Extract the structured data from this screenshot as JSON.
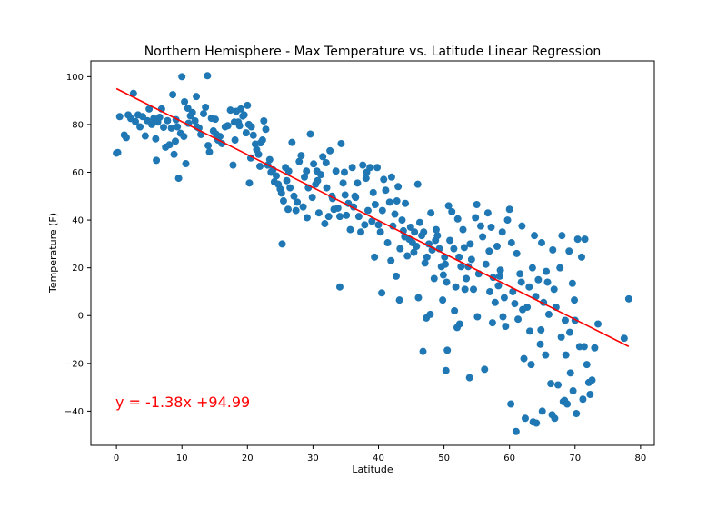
{
  "chart_data": {
    "type": "scatter",
    "title": "Northern Hemisphere - Max Temperature vs. Latitude Linear Regression",
    "xlabel": "Latitude",
    "ylabel": "Temperature (F)",
    "xlim": [
      -3.9,
      82.1
    ],
    "ylim": [
      -54.3,
      106.6
    ],
    "xticks": [
      0,
      10,
      20,
      30,
      40,
      50,
      60,
      70,
      80
    ],
    "xtick_labels": [
      "0",
      "10",
      "20",
      "30",
      "40",
      "50",
      "60",
      "70",
      "80"
    ],
    "yticks": [
      -40,
      -20,
      0,
      20,
      40,
      60,
      80,
      100
    ],
    "ytick_labels": [
      "−40",
      "−20",
      "0",
      "20",
      "40",
      "60",
      "80",
      "100"
    ],
    "grid": false,
    "annotation": "y = -1.38x +94.99",
    "colors": {
      "points": "#1f77b4",
      "regression": "#ff0000",
      "annotation": "#ff0000"
    },
    "regression": {
      "slope": -1.38,
      "intercept": 94.99,
      "x_range": [
        0,
        78.2
      ]
    },
    "points": [
      [
        0.0,
        68.0
      ],
      [
        0.2,
        68.3
      ],
      [
        0.5,
        83.3
      ],
      [
        1.2,
        75.6
      ],
      [
        1.5,
        74.5
      ],
      [
        1.8,
        84.0
      ],
      [
        2.2,
        82.5
      ],
      [
        2.6,
        93.0
      ],
      [
        2.9,
        81.2
      ],
      [
        3.3,
        84.0
      ],
      [
        3.6,
        79.0
      ],
      [
        4.0,
        83.3
      ],
      [
        4.4,
        75.2
      ],
      [
        4.7,
        81.6
      ],
      [
        5.0,
        86.5
      ],
      [
        5.4,
        80.0
      ],
      [
        5.7,
        82.5
      ],
      [
        6.0,
        74.0
      ],
      [
        6.1,
        65.0
      ],
      [
        6.3,
        81.0
      ],
      [
        6.6,
        83.0
      ],
      [
        6.9,
        86.5
      ],
      [
        7.2,
        78.8
      ],
      [
        7.5,
        70.5
      ],
      [
        7.8,
        81.6
      ],
      [
        8.1,
        71.5
      ],
      [
        8.4,
        78.5
      ],
      [
        8.6,
        92.5
      ],
      [
        8.8,
        67.5
      ],
      [
        9.1,
        82.0
      ],
      [
        9.3,
        79.0
      ],
      [
        9.5,
        57.5
      ],
      [
        9.8,
        76.3
      ],
      [
        10.0,
        100.0
      ],
      [
        10.3,
        75.0
      ],
      [
        10.4,
        89.5
      ],
      [
        10.6,
        63.6
      ],
      [
        10.9,
        86.8
      ],
      [
        11.0,
        80.5
      ],
      [
        11.3,
        83.6
      ],
      [
        11.6,
        85.0
      ],
      [
        12.0,
        81.5
      ],
      [
        12.2,
        91.7
      ],
      [
        12.6,
        78.5
      ],
      [
        12.9,
        75.8
      ],
      [
        13.3,
        84.5
      ],
      [
        13.6,
        87.2
      ],
      [
        13.9,
        100.4
      ],
      [
        14.0,
        71.2
      ],
      [
        14.2,
        68.5
      ],
      [
        14.5,
        82.6
      ],
      [
        14.8,
        77.3
      ],
      [
        15.1,
        82.2
      ],
      [
        15.5,
        73.5
      ],
      [
        15.8,
        75.0
      ],
      [
        16.1,
        72.0
      ],
      [
        17.0,
        79.5
      ],
      [
        17.4,
        86.0
      ],
      [
        17.8,
        63.0
      ],
      [
        18.1,
        73.5
      ],
      [
        18.3,
        85.5
      ],
      [
        18.6,
        81.0
      ],
      [
        18.8,
        79.5
      ],
      [
        19.0,
        86.5
      ],
      [
        19.3,
        83.5
      ],
      [
        19.5,
        84.0
      ],
      [
        19.8,
        76.5
      ],
      [
        20.0,
        88.0
      ],
      [
        20.2,
        80.0
      ],
      [
        20.5,
        66.0
      ],
      [
        20.6,
        79.0
      ],
      [
        20.9,
        75.5
      ],
      [
        21.2,
        71.8
      ],
      [
        21.4,
        69.5
      ],
      [
        21.7,
        67.5
      ],
      [
        22.0,
        72.3
      ],
      [
        22.3,
        73.5
      ],
      [
        22.5,
        81.5
      ],
      [
        22.8,
        78.0
      ],
      [
        23.1,
        63.0
      ],
      [
        23.4,
        65.3
      ],
      [
        23.6,
        60.0
      ],
      [
        23.9,
        61.0
      ],
      [
        24.1,
        56.0
      ],
      [
        24.4,
        58.5
      ],
      [
        24.7,
        55.0
      ],
      [
        25.0,
        53.0
      ],
      [
        25.2,
        51.3
      ],
      [
        25.5,
        48.0
      ],
      [
        25.8,
        62.0
      ],
      [
        26.0,
        56.5
      ],
      [
        26.3,
        60.5
      ],
      [
        26.5,
        53.5
      ],
      [
        26.8,
        72.5
      ],
      [
        27.1,
        50.0
      ],
      [
        27.4,
        44.0
      ],
      [
        27.6,
        47.5
      ],
      [
        27.9,
        64.5
      ],
      [
        28.2,
        67.0
      ],
      [
        28.5,
        45.5
      ],
      [
        28.7,
        58.0
      ],
      [
        29.0,
        60.5
      ],
      [
        29.3,
        53.5
      ],
      [
        29.6,
        76.0
      ],
      [
        29.9,
        49.5
      ],
      [
        30.1,
        63.5
      ],
      [
        30.4,
        55.0
      ],
      [
        30.6,
        60.5
      ],
      [
        30.9,
        43.0
      ],
      [
        31.2,
        59.0
      ],
      [
        31.5,
        66.5
      ],
      [
        31.8,
        38.5
      ],
      [
        32.1,
        53.5
      ],
      [
        32.4,
        41.5
      ],
      [
        32.6,
        69.0
      ],
      [
        32.9,
        50.0
      ],
      [
        33.2,
        44.5
      ],
      [
        33.5,
        60.5
      ],
      [
        33.8,
        45.0
      ],
      [
        34.1,
        41.5
      ],
      [
        34.3,
        72.0
      ],
      [
        34.6,
        55.5
      ],
      [
        34.9,
        50.5
      ],
      [
        35.1,
        42.0
      ],
      [
        35.4,
        47.0
      ],
      [
        35.7,
        36.0
      ],
      [
        36.0,
        62.0
      ],
      [
        36.2,
        45.5
      ],
      [
        36.5,
        49.5
      ],
      [
        36.8,
        55.5
      ],
      [
        37.0,
        41.5
      ],
      [
        37.3,
        35.0
      ],
      [
        37.6,
        63.0
      ],
      [
        37.9,
        38.0
      ],
      [
        38.1,
        57.5
      ],
      [
        38.4,
        44.0
      ],
      [
        38.7,
        62.0
      ],
      [
        39.0,
        39.5
      ],
      [
        39.2,
        51.5
      ],
      [
        39.5,
        46.5
      ],
      [
        39.8,
        62.0
      ],
      [
        40.0,
        38.0
      ],
      [
        40.3,
        35.0
      ],
      [
        40.6,
        44.0
      ],
      [
        40.8,
        57.0
      ],
      [
        41.1,
        52.5
      ],
      [
        41.4,
        30.5
      ],
      [
        41.7,
        47.5
      ],
      [
        42.0,
        58.0
      ],
      [
        42.2,
        37.5
      ],
      [
        42.5,
        42.5
      ],
      [
        42.8,
        48.0
      ],
      [
        43.0,
        54.0
      ],
      [
        43.3,
        28.0
      ],
      [
        43.6,
        40.0
      ],
      [
        43.8,
        35.5
      ],
      [
        44.1,
        47.0
      ],
      [
        44.4,
        25.0
      ],
      [
        44.7,
        32.0
      ],
      [
        44.9,
        37.0
      ],
      [
        45.2,
        30.5
      ],
      [
        45.5,
        35.0
      ],
      [
        45.8,
        29.0
      ],
      [
        46.0,
        55.0
      ],
      [
        46.3,
        39.0
      ],
      [
        46.6,
        33.5
      ],
      [
        46.9,
        35.0
      ],
      [
        47.1,
        22.0
      ],
      [
        47.4,
        24.5
      ],
      [
        47.7,
        30.0
      ],
      [
        48.0,
        43.0
      ],
      [
        48.2,
        27.5
      ],
      [
        48.5,
        15.5
      ],
      [
        48.8,
        36.0
      ],
      [
        49.0,
        33.5
      ],
      [
        49.3,
        28.0
      ],
      [
        49.6,
        20.5
      ],
      [
        49.9,
        17.0
      ],
      [
        50.1,
        24.5
      ],
      [
        50.4,
        14.0
      ],
      [
        50.7,
        46.0
      ],
      [
        50.9,
        31.5
      ],
      [
        51.2,
        43.5
      ],
      [
        51.5,
        28.0
      ],
      [
        51.8,
        12.0
      ],
      [
        52.1,
        40.5
      ],
      [
        52.3,
        24.5
      ],
      [
        52.6,
        20.5
      ],
      [
        52.9,
        36.0
      ],
      [
        53.1,
        28.5
      ],
      [
        53.4,
        15.5
      ],
      [
        53.7,
        20.5
      ],
      [
        54.0,
        30.0
      ],
      [
        54.2,
        23.5
      ],
      [
        54.5,
        11.0
      ],
      [
        54.8,
        41.0
      ],
      [
        55.0,
        46.5
      ],
      [
        55.3,
        17.5
      ],
      [
        55.6,
        37.5
      ],
      [
        55.9,
        33.0
      ],
      [
        56.2,
        -22.5
      ],
      [
        56.4,
        21.5
      ],
      [
        56.7,
        43.0
      ],
      [
        57.0,
        10.0
      ],
      [
        57.2,
        37.0
      ],
      [
        57.5,
        16.0
      ],
      [
        57.8,
        5.5
      ],
      [
        58.1,
        29.0
      ],
      [
        58.3,
        12.5
      ],
      [
        58.6,
        19.0
      ],
      [
        58.9,
        35.0
      ],
      [
        59.2,
        7.5
      ],
      [
        59.4,
        -4.5
      ],
      [
        59.7,
        40.0
      ],
      [
        60.0,
        44.5
      ],
      [
        60.2,
        -37.0
      ],
      [
        60.5,
        10.0
      ],
      [
        60.8,
        5.0
      ],
      [
        61.1,
        26.0
      ],
      [
        61.3,
        -1.5
      ],
      [
        61.6,
        17.5
      ],
      [
        61.9,
        37.5
      ],
      [
        62.2,
        -18.0
      ],
      [
        62.4,
        -43.0
      ],
      [
        62.7,
        3.5
      ],
      [
        63.0,
        12.0
      ],
      [
        63.3,
        -20.5
      ],
      [
        63.5,
        20.0
      ],
      [
        63.8,
        33.5
      ],
      [
        64.1,
        -45.0
      ],
      [
        64.4,
        15.0
      ],
      [
        64.7,
        -12.0
      ],
      [
        64.9,
        30.5
      ],
      [
        65.2,
        5.5
      ],
      [
        65.5,
        -16.5
      ],
      [
        65.8,
        14.0
      ],
      [
        66.0,
        0.5
      ],
      [
        66.3,
        -28.5
      ],
      [
        66.6,
        27.5
      ],
      [
        66.9,
        -43.0
      ],
      [
        67.1,
        3.5
      ],
      [
        67.4,
        -29.0
      ],
      [
        67.7,
        20.0
      ],
      [
        68.0,
        33.5
      ],
      [
        68.2,
        -36.0
      ],
      [
        68.5,
        -2.0
      ],
      [
        68.8,
        -37.0
      ],
      [
        69.1,
        27.0
      ],
      [
        69.3,
        -24.0
      ],
      [
        69.6,
        13.5
      ],
      [
        69.9,
        6.5
      ],
      [
        70.2,
        -41.0
      ],
      [
        70.4,
        32.0
      ],
      [
        70.7,
        -13.0
      ],
      [
        71.0,
        24.5
      ],
      [
        71.2,
        -35.0
      ],
      [
        71.5,
        32.0
      ],
      [
        71.8,
        -20.5
      ],
      [
        72.1,
        -28.0
      ],
      [
        72.3,
        -33.0
      ],
      [
        72.6,
        -27.0
      ],
      [
        73.0,
        -13.5
      ],
      [
        73.5,
        -3.5
      ],
      [
        77.5,
        -9.5
      ],
      [
        78.2,
        7.0
      ],
      [
        61.0,
        -48.5
      ],
      [
        63.6,
        -44.5
      ],
      [
        65.0,
        -40.0
      ],
      [
        66.5,
        -41.5
      ],
      [
        68.4,
        -35.5
      ],
      [
        69.7,
        -31.5
      ],
      [
        50.3,
        -23.0
      ],
      [
        53.9,
        -26.0
      ],
      [
        46.8,
        -15.0
      ],
      [
        50.5,
        -14.5
      ],
      [
        47.3,
        -1.0
      ],
      [
        52.0,
        -5.0
      ],
      [
        34.1,
        12.0
      ],
      [
        9.0,
        73.0
      ],
      [
        12.3,
        79.0
      ],
      [
        15.2,
        76.0
      ],
      [
        16.6,
        79.0
      ],
      [
        18.0,
        81.0
      ],
      [
        20.3,
        55.5
      ],
      [
        21.9,
        62.5
      ],
      [
        25.3,
        30.0
      ],
      [
        26.2,
        44.5
      ],
      [
        29.1,
        41.0
      ],
      [
        30.7,
        56.5
      ],
      [
        32.0,
        64.0
      ],
      [
        33.0,
        49.0
      ],
      [
        34.8,
        60.0
      ],
      [
        36.4,
        50.0
      ],
      [
        38.2,
        60.0
      ],
      [
        39.4,
        24.5
      ],
      [
        40.5,
        9.5
      ],
      [
        41.9,
        23.0
      ],
      [
        42.7,
        16.5
      ],
      [
        43.2,
        6.5
      ],
      [
        44.0,
        33.0
      ],
      [
        45.4,
        26.5
      ],
      [
        46.1,
        7.5
      ],
      [
        47.9,
        0.5
      ],
      [
        48.7,
        31.5
      ],
      [
        49.8,
        6.5
      ],
      [
        50.2,
        21.5
      ],
      [
        51.6,
        2.0
      ],
      [
        52.4,
        -3.5
      ],
      [
        53.2,
        11.0
      ],
      [
        55.1,
        -0.5
      ],
      [
        56.9,
        27.0
      ],
      [
        57.4,
        -3.0
      ],
      [
        58.5,
        16.5
      ],
      [
        59.0,
        -0.5
      ],
      [
        60.3,
        30.5
      ],
      [
        61.8,
        14.0
      ],
      [
        62.0,
        2.5
      ],
      [
        63.1,
        -6.5
      ],
      [
        64.0,
        8.0
      ],
      [
        64.8,
        -6.0
      ],
      [
        65.6,
        18.5
      ],
      [
        66.8,
        11.0
      ],
      [
        67.9,
        -9.0
      ],
      [
        68.6,
        -16.5
      ],
      [
        69.2,
        -7.0
      ],
      [
        70.0,
        -2.0
      ],
      [
        71.4,
        -13.0
      ]
    ]
  }
}
